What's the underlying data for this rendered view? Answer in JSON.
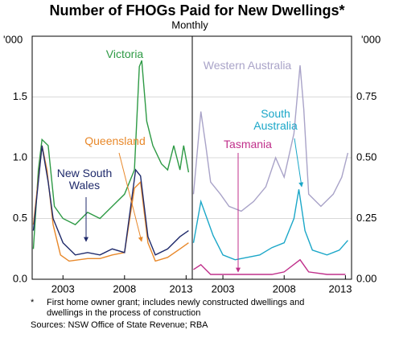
{
  "title": "Number of FHOGs Paid for New Dwellings*",
  "subtitle": "Monthly",
  "note_mark": "*",
  "note": "First home owner grant; includes newly constructed dwellings and dwellings in the process of construction",
  "sources": "Sources: NSW Office of State Revenue; RBA",
  "chart_data": [
    {
      "type": "line",
      "y_label": "'000",
      "ylim": [
        0,
        2
      ],
      "xlim": [
        2000.5,
        2013.5
      ],
      "yticks": [
        {
          "value": 0,
          "label": "0.0"
        },
        {
          "value": 0.5,
          "label": "0.5"
        },
        {
          "value": 1,
          "label": "1.0"
        },
        {
          "value": 1.5,
          "label": "1.5"
        }
      ],
      "xticks": [
        2003,
        2008,
        2013
      ],
      "grid": true,
      "series": [
        {
          "name": "Victoria",
          "color": "#2e9a45",
          "x": [
            2000.6,
            2001.0,
            2001.3,
            2001.8,
            2002.3,
            2003.0,
            2004.0,
            2005.0,
            2006.0,
            2007.0,
            2008.0,
            2008.8,
            2009.2,
            2009.4,
            2009.8,
            2010.3,
            2011.0,
            2011.5,
            2012.0,
            2012.5,
            2012.8,
            2013.2
          ],
          "values": [
            0.25,
            0.9,
            1.15,
            1.1,
            0.6,
            0.5,
            0.45,
            0.55,
            0.5,
            0.6,
            0.7,
            0.9,
            1.75,
            1.8,
            1.3,
            1.1,
            0.95,
            0.9,
            1.1,
            0.9,
            1.1,
            0.88
          ]
        },
        {
          "name": "Queensland",
          "color": "#e8882a",
          "x": [
            2000.6,
            2001.3,
            2001.7,
            2002.2,
            2002.8,
            2003.5,
            2005.0,
            2006.0,
            2007.0,
            2008.0,
            2008.8,
            2009.3,
            2009.9,
            2010.5,
            2011.5,
            2012.5,
            2013.2
          ],
          "values": [
            0.45,
            1.1,
            0.9,
            0.45,
            0.2,
            0.15,
            0.17,
            0.17,
            0.2,
            0.22,
            0.75,
            0.8,
            0.3,
            0.15,
            0.18,
            0.25,
            0.3
          ]
        },
        {
          "name": "New South Wales",
          "color": "#1f2a6b",
          "x": [
            2000.6,
            2001.3,
            2001.8,
            2002.2,
            2003.0,
            2004.0,
            2005.0,
            2006.0,
            2007.0,
            2008.0,
            2008.9,
            2009.3,
            2009.9,
            2010.5,
            2011.5,
            2012.5,
            2013.2
          ],
          "values": [
            0.4,
            1.1,
            0.8,
            0.5,
            0.3,
            0.2,
            0.22,
            0.2,
            0.25,
            0.22,
            0.9,
            0.85,
            0.35,
            0.2,
            0.25,
            0.35,
            0.4
          ]
        }
      ]
    },
    {
      "type": "line",
      "y_label": "'000",
      "ylim": [
        0,
        1
      ],
      "xlim": [
        2000.5,
        2013.5
      ],
      "yticks": [
        {
          "value": 0,
          "label": "0.00"
        },
        {
          "value": 0.25,
          "label": "0.25"
        },
        {
          "value": 0.5,
          "label": "0.50"
        },
        {
          "value": 0.75,
          "label": "0.75"
        }
      ],
      "xticks": [
        2003,
        2008,
        2013
      ],
      "grid": true,
      "series": [
        {
          "name": "Western Australia",
          "color": "#a9a3c8",
          "x": [
            2000.6,
            2001.2,
            2001.6,
            2002.0,
            2002.8,
            2003.5,
            2004.5,
            2005.5,
            2006.5,
            2007.3,
            2008.0,
            2008.8,
            2009.3,
            2009.6,
            2010.0,
            2011.0,
            2012.0,
            2012.7,
            2013.2
          ],
          "values": [
            0.35,
            0.69,
            0.55,
            0.4,
            0.35,
            0.3,
            0.28,
            0.32,
            0.38,
            0.5,
            0.42,
            0.6,
            0.88,
            0.7,
            0.35,
            0.3,
            0.35,
            0.42,
            0.52
          ]
        },
        {
          "name": "South Australia",
          "color": "#1ba7c8",
          "x": [
            2000.6,
            2001.2,
            2001.7,
            2002.2,
            2003.0,
            2004.0,
            2005.0,
            2006.0,
            2007.0,
            2008.0,
            2008.8,
            2009.2,
            2009.7,
            2010.3,
            2011.5,
            2012.5,
            2013.2
          ],
          "values": [
            0.15,
            0.32,
            0.25,
            0.18,
            0.1,
            0.08,
            0.09,
            0.1,
            0.13,
            0.15,
            0.25,
            0.37,
            0.2,
            0.12,
            0.1,
            0.12,
            0.16
          ]
        },
        {
          "name": "Tasmania",
          "color": "#c0308b",
          "x": [
            2000.6,
            2001.2,
            2002.0,
            2003.0,
            2005.0,
            2007.0,
            2008.0,
            2009.3,
            2010.0,
            2011.5,
            2013.0
          ],
          "values": [
            0.04,
            0.06,
            0.02,
            0.02,
            0.02,
            0.02,
            0.03,
            0.08,
            0.03,
            0.02,
            0.02
          ]
        }
      ]
    }
  ]
}
